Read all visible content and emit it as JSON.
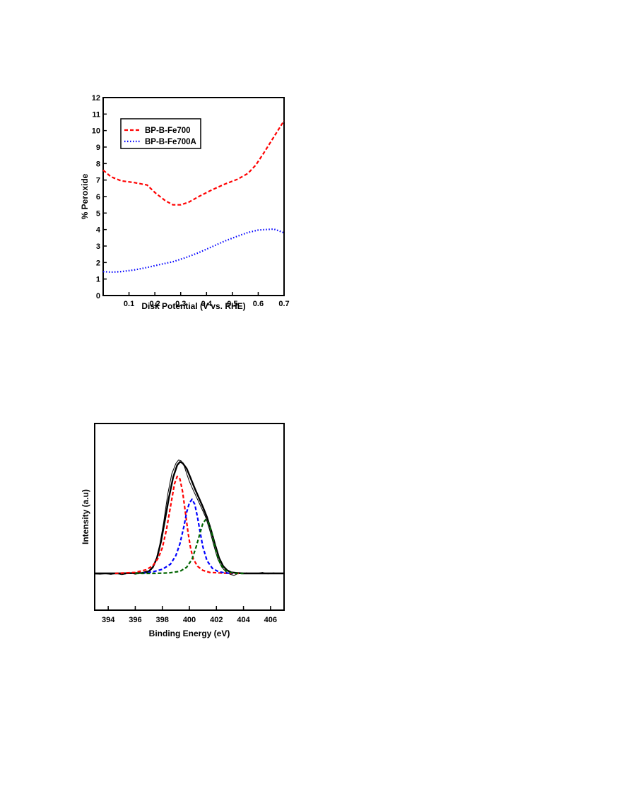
{
  "chart_data": [
    {
      "type": "line",
      "xlabel": "Disk Potential (V vs. RHE)",
      "ylabel": "% Peroxide",
      "xlim": [
        0.0,
        0.7
      ],
      "ylim": [
        0,
        12
      ],
      "xticks": [
        0.1,
        0.2,
        0.3,
        0.4,
        0.5,
        0.6,
        0.7
      ],
      "xtick_labels": [
        "0.1",
        "0.2",
        "0.3",
        "0.4",
        "0.5",
        "0.6",
        "0.7"
      ],
      "yticks": [
        0,
        1,
        2,
        3,
        4,
        5,
        6,
        7,
        8,
        9,
        10,
        11,
        12
      ],
      "ytick_labels": [
        "0",
        "1",
        "2",
        "3",
        "4",
        "5",
        "6",
        "7",
        "8",
        "9",
        "10",
        "11",
        "12"
      ],
      "legend_position": "top-left",
      "series": [
        {
          "name": "BP-B-Fe700",
          "color": "#ff0000",
          "dash": "dashed",
          "x": [
            0.0,
            0.03,
            0.07,
            0.12,
            0.17,
            0.2,
            0.24,
            0.27,
            0.3,
            0.33,
            0.37,
            0.42,
            0.47,
            0.52,
            0.56,
            0.59,
            0.62,
            0.65,
            0.68,
            0.7
          ],
          "y": [
            7.6,
            7.2,
            6.95,
            6.85,
            6.7,
            6.25,
            5.75,
            5.5,
            5.5,
            5.65,
            6.0,
            6.4,
            6.75,
            7.05,
            7.4,
            7.9,
            8.6,
            9.35,
            10.1,
            10.6
          ]
        },
        {
          "name": "BP-B-Fe700A",
          "color": "#0000ff",
          "dash": "dotted",
          "x": [
            0.0,
            0.03,
            0.07,
            0.12,
            0.17,
            0.22,
            0.27,
            0.32,
            0.37,
            0.42,
            0.47,
            0.52,
            0.56,
            0.6,
            0.63,
            0.66,
            0.68,
            0.7
          ],
          "y": [
            1.45,
            1.42,
            1.45,
            1.55,
            1.7,
            1.88,
            2.05,
            2.3,
            2.6,
            2.95,
            3.3,
            3.6,
            3.82,
            3.97,
            4.0,
            4.03,
            3.92,
            3.8
          ]
        }
      ]
    },
    {
      "type": "line",
      "xlabel": "Binding Energy (eV)",
      "ylabel": "Intensity (a.u)",
      "xlim": [
        393,
        407
      ],
      "xticks": [
        394,
        396,
        398,
        400,
        402,
        404,
        406
      ],
      "xtick_labels": [
        "394",
        "396",
        "398",
        "400",
        "402",
        "404",
        "406"
      ],
      "y_ticks_shown": false,
      "series": [
        {
          "role": "raw spectrum",
          "color": "#000000",
          "x": [
            393.0,
            393.4,
            393.8,
            394.2,
            394.6,
            395.0,
            395.3,
            395.6,
            396.0,
            396.3,
            396.6,
            396.9,
            397.2,
            397.5,
            397.8,
            398.1,
            398.4,
            398.7,
            399.0,
            399.2,
            399.4,
            399.6,
            399.8,
            400.0,
            400.3,
            400.6,
            400.9,
            401.2,
            401.5,
            401.8,
            402.1,
            402.4,
            402.7,
            403.0,
            403.3,
            403.6,
            403.9,
            404.2,
            404.6,
            405.0,
            405.4,
            405.8,
            406.2,
            406.6,
            407.0
          ],
          "y": [
            0.99,
            0.985,
            0.995,
            0.98,
            1.0,
            0.975,
            0.99,
            1.01,
            0.985,
            1.0,
            1.005,
            1.02,
            1.08,
            1.22,
            1.55,
            2.0,
            2.55,
            2.95,
            3.15,
            3.22,
            3.2,
            3.12,
            2.95,
            2.8,
            2.62,
            2.45,
            2.28,
            2.1,
            1.85,
            1.55,
            1.28,
            1.12,
            1.03,
            0.985,
            0.96,
            1.0,
            0.99,
            1.01,
            0.995,
            1.0,
            1.02,
            0.99,
            1.01,
            1.0,
            0.995
          ]
        },
        {
          "role": "envelope fit",
          "color": "#000000",
          "x": [
            393.0,
            395.0,
            396.5,
            397.0,
            397.3,
            397.6,
            397.9,
            398.2,
            398.5,
            398.8,
            399.1,
            399.3,
            399.5,
            399.8,
            400.1,
            400.4,
            400.7,
            401.0,
            401.3,
            401.6,
            401.9,
            402.2,
            402.5,
            402.8,
            403.1,
            403.5,
            404.0,
            405.0,
            407.0
          ],
          "y": [
            1.0,
            1.0,
            1.01,
            1.04,
            1.12,
            1.3,
            1.62,
            2.05,
            2.5,
            2.88,
            3.12,
            3.18,
            3.16,
            3.05,
            2.86,
            2.66,
            2.48,
            2.3,
            2.1,
            1.85,
            1.56,
            1.3,
            1.14,
            1.06,
            1.02,
            1.01,
            1.0,
            1.0,
            1.0
          ]
        },
        {
          "role": "component fit 1",
          "color": "#ff0000",
          "dash": "dashed",
          "x": [
            394.5,
            396.0,
            396.8,
            397.3,
            397.7,
            398.0,
            398.3,
            398.6,
            398.9,
            399.1,
            399.3,
            399.5,
            399.7,
            399.9,
            400.1,
            400.3,
            400.6,
            401.0,
            401.5,
            402.2,
            403.0,
            403.8
          ],
          "y": [
            1.0,
            1.02,
            1.07,
            1.15,
            1.3,
            1.5,
            1.85,
            2.3,
            2.75,
            2.9,
            2.85,
            2.6,
            2.2,
            1.8,
            1.48,
            1.28,
            1.14,
            1.06,
            1.02,
            1.01,
            1.0,
            1.0
          ]
        },
        {
          "role": "component fit 2",
          "color": "#0000ff",
          "dash": "dashed",
          "x": [
            396.5,
            397.3,
            398.0,
            398.6,
            399.0,
            399.3,
            399.6,
            399.8,
            400.0,
            400.2,
            400.4,
            400.6,
            400.8,
            401.0,
            401.3,
            401.7,
            402.1,
            402.6,
            403.2
          ],
          "y": [
            1.0,
            1.03,
            1.08,
            1.18,
            1.35,
            1.58,
            1.92,
            2.2,
            2.38,
            2.45,
            2.35,
            2.1,
            1.8,
            1.52,
            1.25,
            1.1,
            1.04,
            1.01,
            1.0
          ]
        },
        {
          "role": "component fit 3",
          "color": "#006400",
          "dash": "dashed",
          "x": [
            396.0,
            397.5,
            398.5,
            399.3,
            399.8,
            400.2,
            400.5,
            400.8,
            401.0,
            401.2,
            401.4,
            401.6,
            401.8,
            402.0,
            402.3,
            402.6,
            403.0,
            403.5,
            404.0
          ],
          "y": [
            1.0,
            1.0,
            1.01,
            1.04,
            1.12,
            1.28,
            1.52,
            1.8,
            1.98,
            2.05,
            2.0,
            1.85,
            1.62,
            1.4,
            1.18,
            1.07,
            1.02,
            1.0,
            1.0
          ]
        }
      ]
    }
  ]
}
